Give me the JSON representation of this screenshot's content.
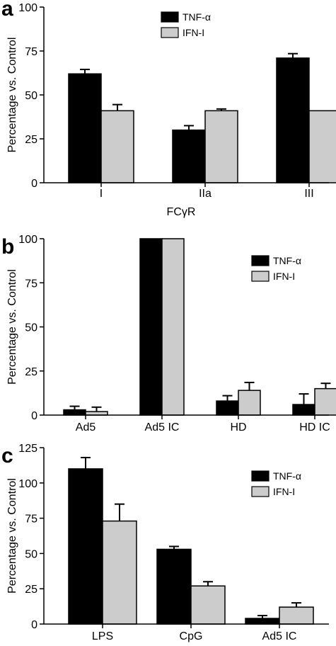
{
  "colors": {
    "tnf": "#000000",
    "ifn": "#cccccc",
    "axis": "#000000"
  },
  "chart_data": [
    {
      "panel": "a",
      "type": "bar",
      "ylabel": "Percentage vs. Control",
      "xlabel": "FCγR",
      "ylim": [
        0,
        100
      ],
      "yticks": [
        0,
        25,
        50,
        75,
        100
      ],
      "categories": [
        "I",
        "IIa",
        "III"
      ],
      "legend_position": "top-center",
      "series": [
        {
          "name": "TNF-α",
          "values": [
            62,
            30,
            71
          ],
          "errors": [
            2.5,
            2.5,
            2.5
          ]
        },
        {
          "name": "IFN-I",
          "values": [
            41,
            41,
            41
          ],
          "errors": [
            3.5,
            1,
            0
          ]
        }
      ]
    },
    {
      "panel": "b",
      "type": "bar",
      "ylabel": "Percentage vs. Control",
      "xlabel": "",
      "ylim": [
        0,
        100
      ],
      "yticks": [
        0,
        25,
        50,
        75,
        100
      ],
      "categories": [
        "Ad5",
        "Ad5 IC",
        "HD",
        "HD IC"
      ],
      "legend_position": "right",
      "series": [
        {
          "name": "TNF-α",
          "values": [
            3,
            100,
            8,
            6
          ],
          "errors": [
            2,
            0,
            3,
            6
          ]
        },
        {
          "name": "IFN-I",
          "values": [
            2,
            100,
            14,
            15
          ],
          "errors": [
            2.5,
            0,
            4.5,
            3
          ]
        }
      ]
    },
    {
      "panel": "c",
      "type": "bar",
      "ylabel": "Percentage vs. Control",
      "xlabel": "",
      "ylim": [
        0,
        125
      ],
      "yticks": [
        0,
        25,
        50,
        75,
        100,
        125
      ],
      "categories": [
        "LPS",
        "CpG",
        "Ad5 IC"
      ],
      "legend_position": "right",
      "series": [
        {
          "name": "TNF-α",
          "values": [
            110,
            53,
            4
          ],
          "errors": [
            8,
            2,
            2
          ]
        },
        {
          "name": "IFN-I",
          "values": [
            73,
            27,
            12
          ],
          "errors": [
            12,
            3,
            3
          ]
        }
      ]
    }
  ]
}
